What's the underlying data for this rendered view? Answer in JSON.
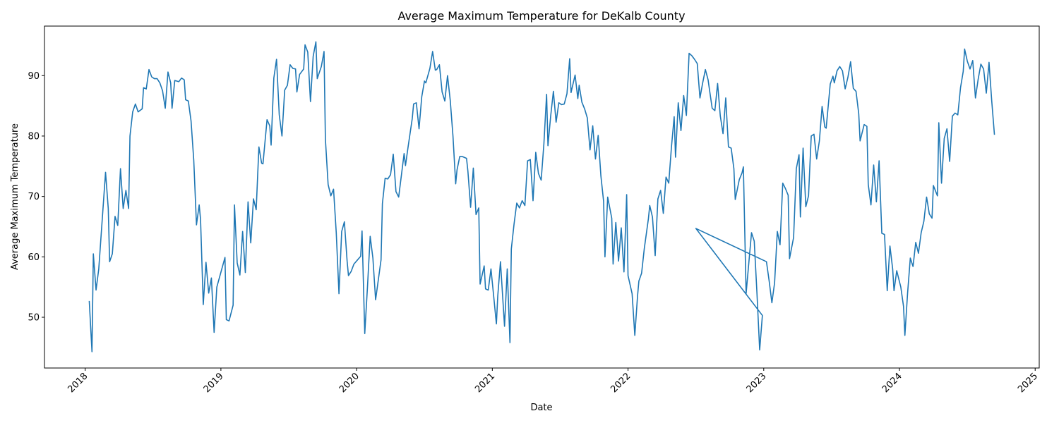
{
  "chart_data": {
    "type": "line",
    "title": "Average Maximum Temperature for DeKalb County",
    "xlabel": "Date",
    "ylabel": "Average Maximum Temperature",
    "x": [
      2018.03,
      2018.05,
      2018.06,
      2018.08,
      2018.1,
      2018.15,
      2018.17,
      2018.18,
      2018.2,
      2018.22,
      2018.24,
      2018.26,
      2018.28,
      2018.3,
      2018.32,
      2018.33,
      2018.35,
      2018.37,
      2018.39,
      2018.42,
      2018.43,
      2018.45,
      2018.47,
      2018.49,
      2018.51,
      2018.53,
      2018.55,
      2018.57,
      2018.59,
      2018.61,
      2018.63,
      2018.64,
      2018.66,
      2018.69,
      2018.71,
      2018.73,
      2018.74,
      2018.76,
      2018.78,
      2018.8,
      2018.82,
      2018.84,
      2018.85,
      2018.87,
      2018.89,
      2018.91,
      2018.93,
      2018.95,
      2018.97,
      2019.03,
      2019.04,
      2019.06,
      2019.09,
      2019.1,
      2019.12,
      2019.14,
      2019.16,
      2019.18,
      2019.2,
      2019.22,
      2019.24,
      2019.26,
      2019.28,
      2019.3,
      2019.31,
      2019.34,
      2019.36,
      2019.37,
      2019.39,
      2019.41,
      2019.43,
      2019.45,
      2019.47,
      2019.49,
      2019.51,
      2019.53,
      2019.55,
      2019.56,
      2019.58,
      2019.61,
      2019.62,
      2019.64,
      2019.66,
      2019.68,
      2019.7,
      2019.71,
      2019.74,
      2019.76,
      2019.77,
      2019.79,
      2019.81,
      2019.83,
      2019.85,
      2019.87,
      2019.89,
      2019.91,
      2019.93,
      2019.94,
      2019.96,
      2019.98,
      2020.03,
      2020.04,
      2020.06,
      2020.08,
      2020.1,
      2020.12,
      2020.14,
      2020.18,
      2020.19,
      2020.21,
      2020.23,
      2020.25,
      2020.27,
      2020.29,
      2020.31,
      2020.33,
      2020.35,
      2020.36,
      2020.38,
      2020.41,
      2020.42,
      2020.44,
      2020.46,
      2020.48,
      2020.5,
      2020.51,
      2020.54,
      2020.56,
      2020.58,
      2020.59,
      2020.61,
      2020.63,
      2020.65,
      2020.67,
      2020.69,
      2020.71,
      2020.73,
      2020.74,
      2020.76,
      2020.78,
      2020.81,
      2020.82,
      2020.84,
      2020.86,
      2020.88,
      2020.9,
      2020.91,
      2020.94,
      2020.95,
      2020.97,
      2020.99,
      2021.01,
      2021.03,
      2021.04,
      2021.06,
      2021.09,
      2021.11,
      2021.13,
      2021.14,
      2021.16,
      2021.18,
      2021.2,
      2021.22,
      2021.24,
      2021.26,
      2021.28,
      2021.3,
      2021.32,
      2021.34,
      2021.36,
      2021.38,
      2021.4,
      2021.41,
      2021.43,
      2021.45,
      2021.47,
      2021.49,
      2021.51,
      2021.53,
      2021.55,
      2021.57,
      2021.58,
      2021.61,
      2021.63,
      2021.64,
      2021.66,
      2021.68,
      2021.7,
      2021.72,
      2021.74,
      2021.76,
      2021.78,
      2021.8,
      2021.82,
      2021.83,
      2021.85,
      2021.88,
      2021.89,
      2021.91,
      2021.93,
      2021.95,
      2021.97,
      2021.99,
      2022.0,
      2022.03,
      2022.05,
      2022.07,
      2022.08,
      2022.1,
      2022.12,
      2022.15,
      2022.16,
      2022.18,
      2022.2,
      2022.22,
      2022.24,
      2022.26,
      2022.28,
      2022.3,
      2022.32,
      2022.34,
      2022.35,
      2022.37,
      2022.39,
      2022.41,
      2022.43,
      2022.45,
      2022.47,
      2022.49,
      2022.51,
      2022.53,
      2022.55,
      2022.57,
      2022.59,
      2022.6,
      2022.62,
      2022.64,
      2022.66,
      2022.68,
      2022.7,
      2022.72,
      2022.74,
      2022.76,
      2022.78,
      2022.79,
      2022.82,
      2022.84,
      2022.85,
      2022.87,
      2022.89,
      2022.91,
      2022.93,
      2022.95,
      2022.97,
      2022.99,
      2022.5,
      2023.02,
      2023.04,
      2023.06,
      2023.08,
      2023.1,
      2023.12,
      2023.14,
      2023.16,
      2023.18,
      2023.19,
      2023.22,
      2023.24,
      2023.26,
      2023.27,
      2023.29,
      2023.31,
      2023.33,
      2023.35,
      2023.37,
      2023.39,
      2023.41,
      2023.43,
      2023.45,
      2023.46,
      2023.49,
      2023.51,
      2023.52,
      2023.54,
      2023.56,
      2023.58,
      2023.6,
      2023.62,
      2023.64,
      2023.66,
      2023.68,
      2023.7,
      2023.71,
      2023.74,
      2023.76,
      2023.77,
      2023.79,
      2023.81,
      2023.83,
      2023.85,
      2023.87,
      2023.89,
      2023.91,
      2023.93,
      2023.95,
      2023.96,
      2023.98,
      2024.01,
      2024.03,
      2024.04,
      2024.06,
      2024.08,
      2024.1,
      2024.12,
      2024.14,
      2024.16,
      2024.18,
      2024.2,
      2024.22,
      2024.24,
      2024.25,
      2024.28,
      2024.29,
      2024.31,
      2024.33,
      2024.35,
      2024.37,
      2024.39,
      2024.41,
      2024.43,
      2024.45,
      2024.47,
      2024.48,
      2024.5,
      2024.52,
      2024.54,
      2024.56,
      2024.58,
      2024.6,
      2024.62,
      2024.64,
      2024.66,
      2024.68,
      2024.7
    ],
    "series": [
      {
        "color": "#1f77b4",
        "values": [
          52.7,
          44.3,
          60.5,
          54.5,
          58,
          74,
          68,
          59.2,
          60.5,
          66.7,
          65.2,
          74.6,
          68,
          71,
          68,
          80,
          84,
          85.3,
          84,
          84.5,
          88,
          87.8,
          91,
          89.8,
          89.5,
          89.5,
          88.8,
          87.5,
          84.6,
          90.6,
          88.8,
          84.6,
          89.2,
          89,
          89.6,
          89.3,
          86,
          85.8,
          82.5,
          76,
          65.3,
          68.6,
          66.2,
          52.1,
          59.1,
          54,
          56.5,
          47.5,
          55,
          59.9,
          49.6,
          49.4,
          52,
          68.6,
          59,
          57,
          64.2,
          57.4,
          69.1,
          62.3,
          69.6,
          67.8,
          78.2,
          75.5,
          75.4,
          82.7,
          81.7,
          78.5,
          89.6,
          92.7,
          83.5,
          80,
          87.6,
          88.4,
          91.8,
          91.2,
          91.1,
          87.3,
          90.2,
          91.1,
          95.1,
          93.9,
          85.7,
          93.2,
          95.6,
          89.5,
          91.5,
          94,
          79.5,
          72,
          70.1,
          71.2,
          64,
          53.9,
          64.2,
          65.8,
          59.3,
          56.9,
          57.6,
          58.8,
          60.1,
          64.3,
          47.3,
          55,
          63.4,
          59.8,
          52.9,
          59.5,
          68.8,
          73,
          72.9,
          73.6,
          77,
          70.8,
          69.9,
          73.5,
          77.1,
          75.1,
          78.3,
          82.9,
          85.3,
          85.5,
          81.2,
          86.5,
          89.1,
          88.8,
          91.2,
          94,
          90.9,
          91,
          91.8,
          87.3,
          85.8,
          90,
          85.9,
          80,
          72.1,
          74.4,
          76.6,
          76.6,
          76.3,
          74.2,
          68.2,
          74.7,
          67,
          68.1,
          55.5,
          58.5,
          54.7,
          54.5,
          58,
          53.5,
          48.9,
          53.5,
          59.2,
          48.5,
          58,
          45.8,
          61.3,
          65.4,
          68.9,
          68.1,
          69.3,
          68.5,
          75.9,
          76.1,
          69.3,
          77.3,
          73.8,
          72.7,
          78.7,
          86.9,
          78.4,
          83.3,
          87.4,
          82.3,
          85.5,
          85.2,
          85.3,
          87,
          92.8,
          87.2,
          90.1,
          86.2,
          88.4,
          85.6,
          84.5,
          83,
          77.7,
          81.7,
          76.2,
          80.1,
          73.4,
          69.2,
          60,
          69.9,
          66.4,
          58.8,
          65.7,
          59.3,
          64.8,
          57.5,
          70.3,
          56.9,
          53.9,
          47,
          53.5,
          56,
          57.3,
          61.4,
          66.3,
          68.5,
          66.6,
          60.2,
          69.6,
          71,
          67.2,
          73.2,
          72.2,
          78.2,
          83.2,
          76.5,
          85.5,
          80.9,
          86.7,
          83.4,
          93.7,
          93.3,
          92.7,
          92,
          86.3,
          88.8,
          91,
          89.3,
          87.7,
          84.6,
          84.2,
          88.7,
          83.3,
          80.4,
          86.3,
          78.2,
          78,
          74.6,
          69.5,
          72.8,
          73.9,
          74.9,
          53.9,
          59,
          64,
          62.6,
          54,
          44.6,
          50.3,
          64.7,
          59.2,
          56,
          52.4,
          55.7,
          64.2,
          62,
          72.2,
          71.3,
          70.2,
          59.7,
          63.2,
          74.6,
          76.9,
          66.6,
          78,
          68.3,
          70.1,
          80,
          80.3,
          76.2,
          79.2,
          84.9,
          81.5,
          81.3,
          88.6,
          89.9,
          88.8,
          90.8,
          91.5,
          90.8,
          87.8,
          89.7,
          92.3,
          87.9,
          87.4,
          83.7,
          79.2,
          81.9,
          81.6,
          72,
          68.6,
          75.2,
          69.1,
          75.9,
          63.9,
          63.7,
          54.4,
          61.8,
          58,
          54.4,
          57.7,
          55,
          51.8,
          47,
          54,
          59.8,
          58.4,
          62.4,
          60.6,
          64,
          65.9,
          69.9,
          67.1,
          66.4,
          71.8,
          70.1,
          82.2,
          72.2,
          79.6,
          81.2,
          75.8,
          83.3,
          83.8,
          83.5,
          88,
          90.7,
          94.4,
          92.4,
          91.1,
          92.5,
          86.3,
          89.4,
          91.9,
          91.1,
          87.1,
          92.2,
          85.8,
          80.2
        ]
      }
    ],
    "xlim": [
      2017.7,
      2025.03
    ],
    "xticks": [
      2018,
      2019,
      2020,
      2021,
      2022,
      2023,
      2024,
      2025
    ],
    "ylim": [
      41.6,
      98.2
    ],
    "yticks": [
      50,
      60,
      70,
      80,
      90
    ],
    "grid": false
  }
}
